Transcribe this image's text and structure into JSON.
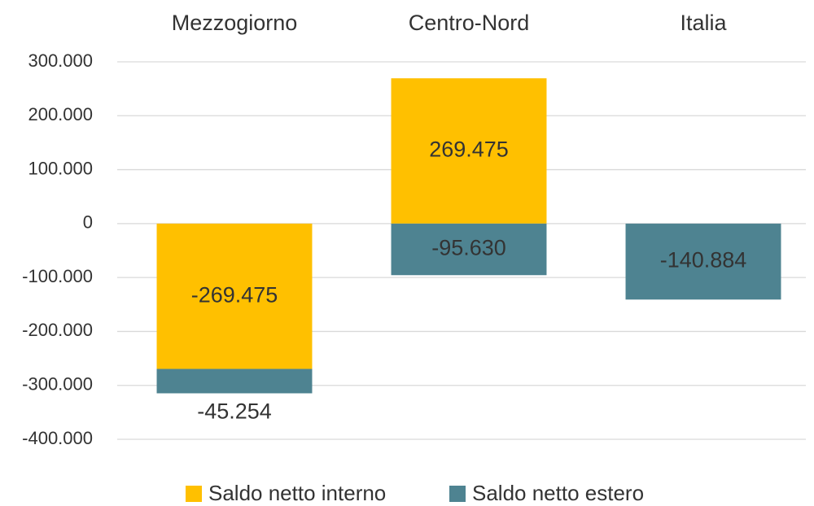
{
  "chart_data": {
    "type": "bar",
    "stacked": true,
    "categories": [
      "Mezzogiorno",
      "Centro-Nord",
      "Italia"
    ],
    "series": [
      {
        "name": "Saldo netto interno",
        "color": "#FFC000",
        "values": [
          -269475,
          269475,
          null
        ],
        "value_labels": [
          "-269.475",
          "269.475",
          null
        ]
      },
      {
        "name": "Saldo netto estero",
        "color": "#4E8391",
        "values": [
          -45254,
          -95630,
          -140884
        ],
        "value_labels": [
          "-45.254",
          "-95.630",
          "-140.884"
        ]
      }
    ],
    "ylim": [
      -400000,
      300000
    ],
    "yticks": [
      {
        "value": -400000,
        "label": "-400.000"
      },
      {
        "value": -300000,
        "label": "-300.000"
      },
      {
        "value": -200000,
        "label": "-200.000"
      },
      {
        "value": -100000,
        "label": "-100.000"
      },
      0,
      {
        "value": 100000,
        "label": "100.000"
      },
      {
        "value": 200000,
        "label": "200.000"
      },
      {
        "value": 300000,
        "label": "300.000"
      }
    ],
    "grid": true,
    "legend": "bottom"
  }
}
